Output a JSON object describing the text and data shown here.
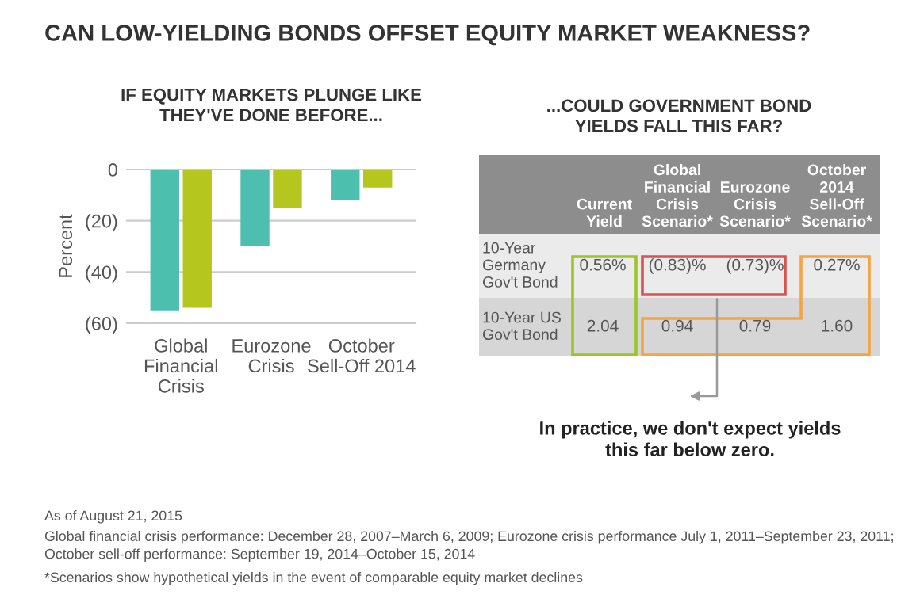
{
  "chart_data": [
    {
      "type": "bar",
      "title": "IF EQUITY MARKETS PLUNGE LIKE\nTHEY'VE DONE BEFORE...",
      "ylabel": "Percent",
      "categories": [
        "Global\nFinancial\nCrisis",
        "Eurozone\nCrisis",
        "October\nSell-Off 2014"
      ],
      "series": [
        {
          "color": "#4dbfae",
          "values": [
            -55,
            -30,
            -12
          ]
        },
        {
          "color": "#b5c61f",
          "values": [
            -54,
            -15,
            -7
          ]
        }
      ],
      "ylim": [
        -60,
        0
      ],
      "yticks": [
        0,
        {
          "value": -20,
          "label": "(20)"
        },
        {
          "value": -40,
          "label": "(40)"
        },
        {
          "value": -60,
          "label": "(60)"
        }
      ],
      "grid": "y",
      "annotations": [
        "CAN LOW-YIELDING BONDS OFFSET EQUITY MARKET WEAKNESS?",
        "As of August 21, 2015",
        "Global financial crisis performance: December 28, 2007–March 6, 2009; Eurozone crisis performance July 1, 2011–September 23, 2011; October sell-off performance: September 19, 2014–October 15, 2014",
        "*Scenarios show hypothetical yields in the event of comparable equity market declines"
      ]
    },
    {
      "type": "other",
      "title": "...COULD GOVERNMENT BOND\nYIELDS FALL THIS FAR?",
      "categories": [
        null,
        "Current\nYield",
        "Global\nFinancial\nCrisis\nScenario*",
        "Eurozone\nCrisis\nScenario*",
        "October\n2014\nSell-Off\nScenario*"
      ],
      "y_categories": [
        "10-Year\nGermany\nGov't Bond",
        "10-Year US\nGov't Bond"
      ],
      "cell_labels": [
        [
          "0.56%",
          "(0.83)%",
          "(0.73)%",
          "0.27%"
        ],
        [
          "2.04",
          "0.94",
          "0.79",
          "1.60"
        ]
      ],
      "annotations": [
        "In practice, we don't expect yields\nthis far below zero."
      ]
    }
  ]
}
